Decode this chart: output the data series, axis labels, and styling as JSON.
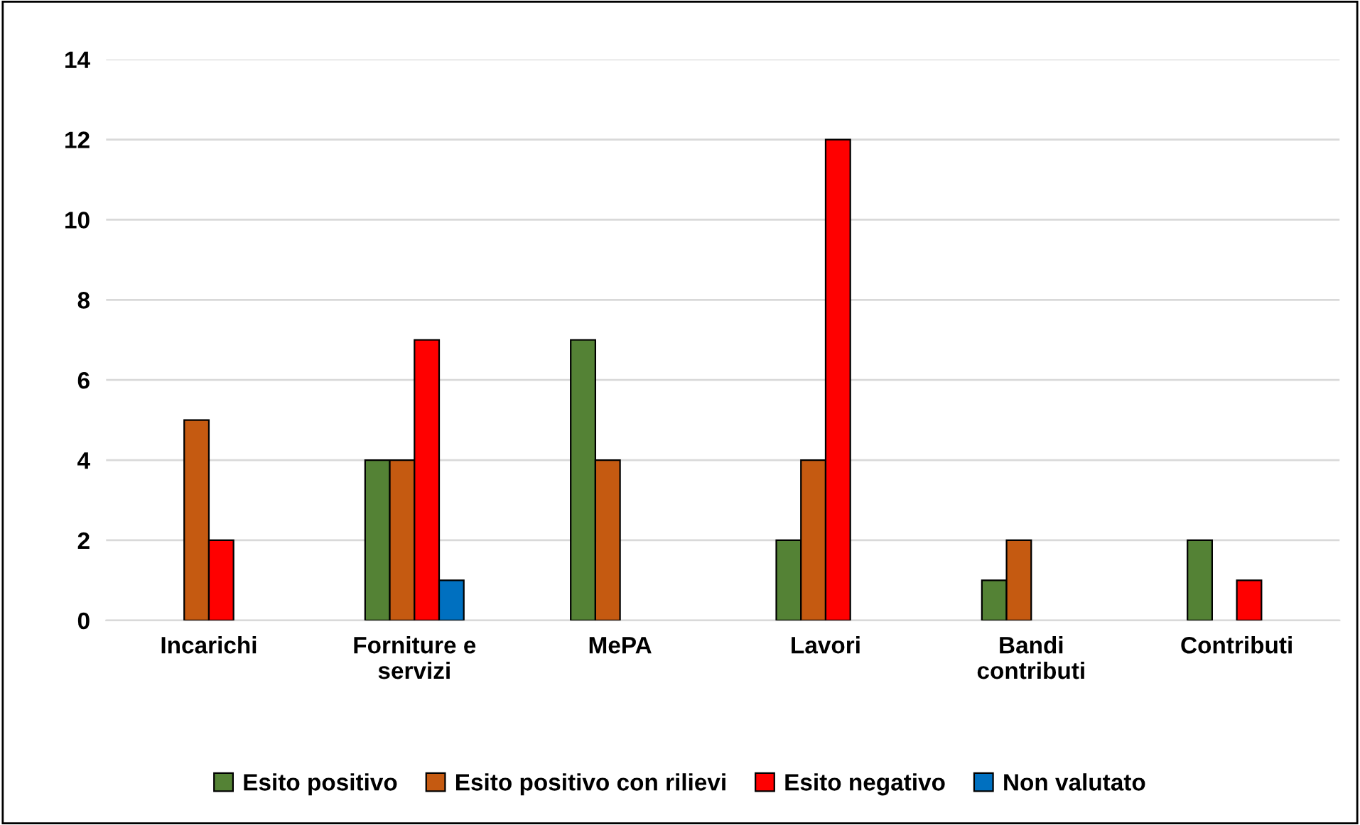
{
  "chart_data": {
    "type": "bar",
    "categories": [
      "Incarichi",
      "Forniture e\nservizi",
      "MePA",
      "Lavori",
      "Bandi\ncontributi",
      "Contributi"
    ],
    "series": [
      {
        "name": "Esito positivo",
        "color": "#548235",
        "values": [
          null,
          4,
          7,
          2,
          1,
          2
        ]
      },
      {
        "name": "Esito positivo con rilievi",
        "color": "#c55a11",
        "values": [
          5,
          4,
          4,
          4,
          2,
          null
        ]
      },
      {
        "name": "Esito negativo",
        "color": "#ff0000",
        "values": [
          2,
          7,
          null,
          12,
          null,
          1
        ]
      },
      {
        "name": "Non valutato",
        "color": "#0070c0",
        "values": [
          null,
          1,
          null,
          null,
          null,
          null
        ]
      }
    ],
    "ylim": [
      0,
      14
    ],
    "yticks": [
      0,
      2,
      4,
      6,
      8,
      10,
      12,
      14
    ],
    "grid": "y",
    "legend": "bottom"
  }
}
